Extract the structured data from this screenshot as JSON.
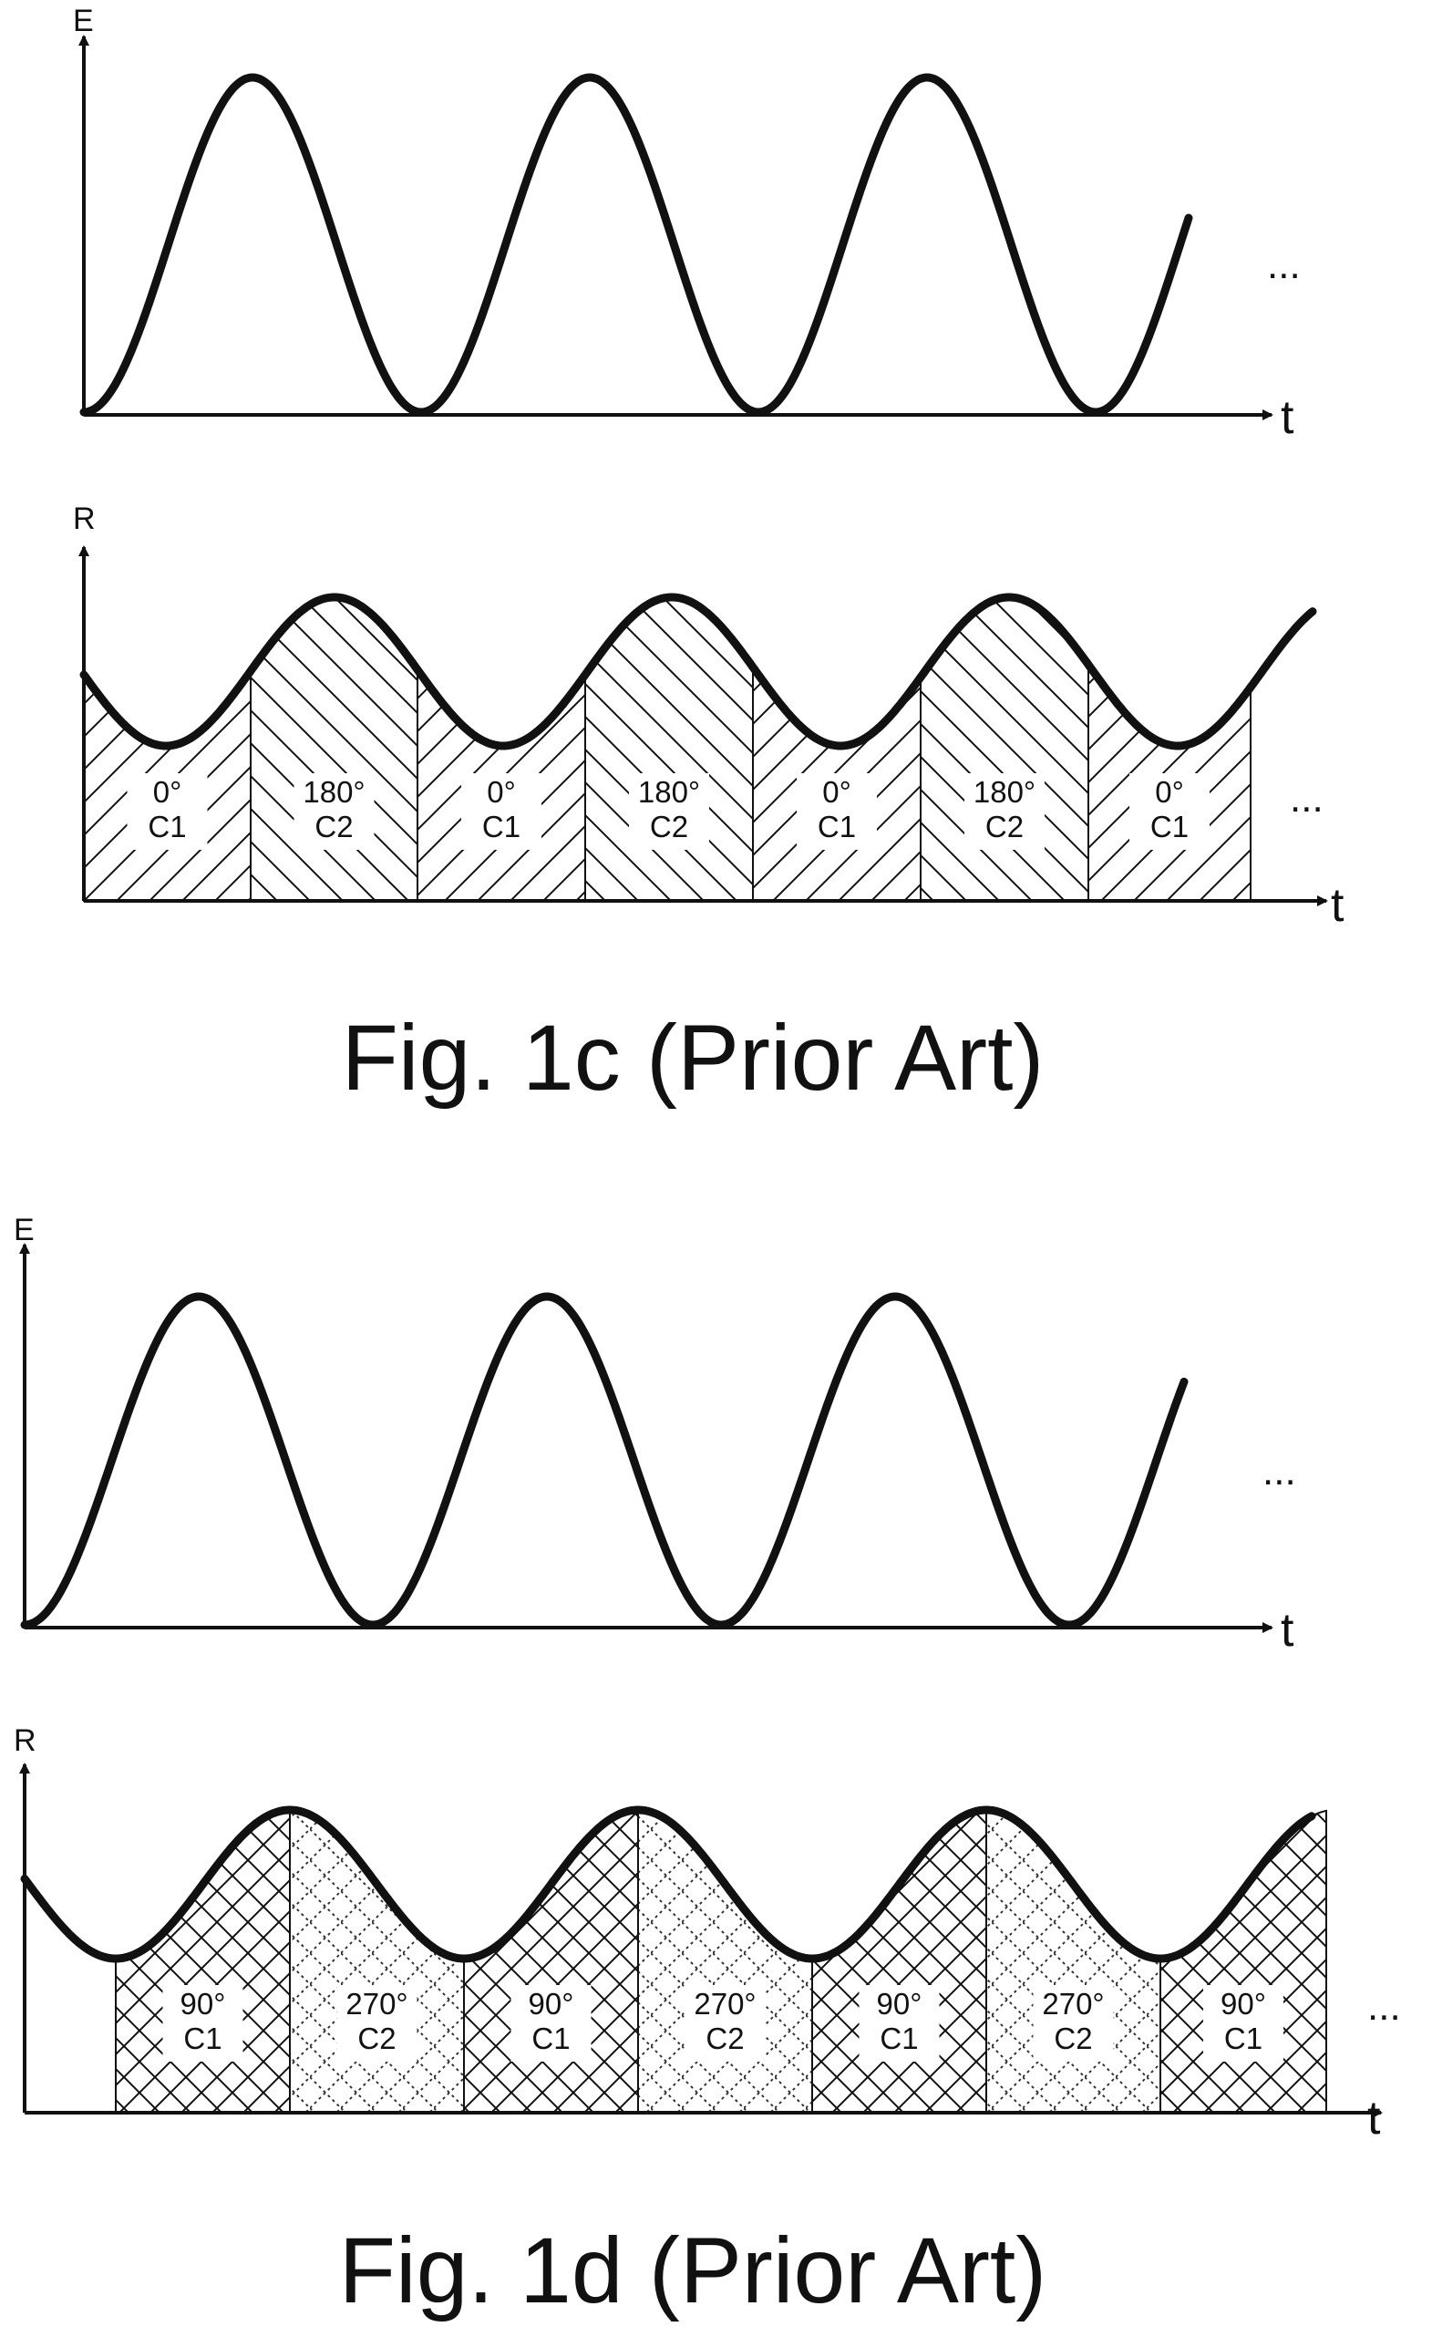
{
  "figures": [
    {
      "caption": "Fig. 1c (Prior Art)",
      "top_plot": {
        "y_label": "E",
        "x_label": "t",
        "continuation": "..."
      },
      "bottom_plot": {
        "y_label": "R",
        "x_label": "t",
        "continuation": "...",
        "segments": [
          {
            "phase": "0°",
            "channel": "C1",
            "hatch": "diag-up"
          },
          {
            "phase": "180°",
            "channel": "C2",
            "hatch": "diag-down"
          },
          {
            "phase": "0°",
            "channel": "C1",
            "hatch": "diag-up"
          },
          {
            "phase": "180°",
            "channel": "C2",
            "hatch": "diag-down"
          },
          {
            "phase": "0°",
            "channel": "C1",
            "hatch": "diag-up"
          },
          {
            "phase": "180°",
            "channel": "C2",
            "hatch": "diag-down"
          },
          {
            "phase": "0°",
            "channel": "C1",
            "hatch": "diag-up"
          }
        ]
      }
    },
    {
      "caption": "Fig. 1d (Prior Art)",
      "top_plot": {
        "y_label": "E",
        "x_label": "t",
        "continuation": "..."
      },
      "bottom_plot": {
        "y_label": "R",
        "x_label": "t",
        "continuation": "...",
        "segments": [
          {
            "phase": "90°",
            "channel": "C1",
            "hatch": "cross-solid"
          },
          {
            "phase": "270°",
            "channel": "C2",
            "hatch": "cross-dotted"
          },
          {
            "phase": "90°",
            "channel": "C1",
            "hatch": "cross-solid"
          },
          {
            "phase": "270°",
            "channel": "C2",
            "hatch": "cross-dotted"
          },
          {
            "phase": "90°",
            "channel": "C1",
            "hatch": "cross-solid"
          },
          {
            "phase": "270°",
            "channel": "C2",
            "hatch": "cross-dotted"
          },
          {
            "phase": "90°",
            "channel": "C1",
            "hatch": "cross-solid"
          }
        ]
      }
    }
  ],
  "colors": {
    "ink": "#111111",
    "background": "#ffffff"
  }
}
